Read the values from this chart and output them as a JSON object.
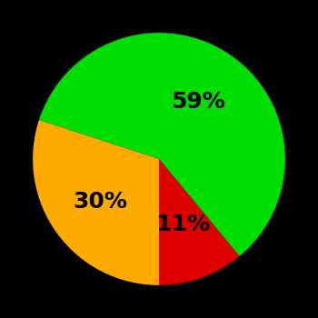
{
  "slices": [
    59,
    11,
    30
  ],
  "colors": [
    "#00dd00",
    "#dd0000",
    "#ffaa00"
  ],
  "labels": [
    "59%",
    "11%",
    "30%"
  ],
  "background_color": "#000000",
  "text_color": "#000000",
  "startangle": 162,
  "label_fontsize": 18,
  "label_fontweight": "bold",
  "label_radii": [
    0.55,
    0.55,
    0.58
  ]
}
